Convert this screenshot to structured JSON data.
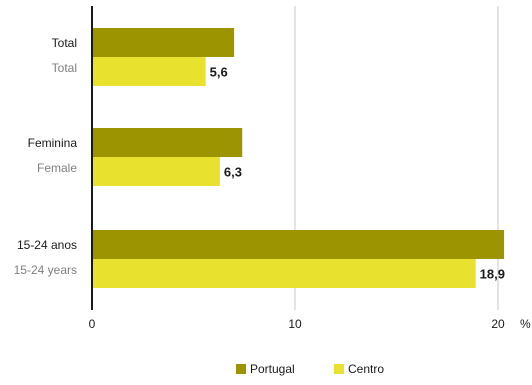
{
  "chart_data": {
    "type": "bar",
    "orientation": "horizontal",
    "categories": [
      {
        "label": "Total",
        "sublabel": "Total"
      },
      {
        "label": "Feminina",
        "sublabel": "Female"
      },
      {
        "label": "15-24 anos",
        "sublabel": "15-24 years"
      }
    ],
    "series": [
      {
        "name": "Portugal",
        "color": "#9c9400",
        "values": [
          7.0,
          7.4,
          20.3
        ],
        "data_labels": [
          null,
          null,
          null
        ]
      },
      {
        "name": "Centro",
        "color": "#e8e22e",
        "values": [
          5.6,
          6.3,
          18.9
        ],
        "data_labels": [
          "5,6",
          "6,3",
          "18,9"
        ]
      }
    ],
    "x_ticks": [
      {
        "value": 0,
        "label": "0"
      },
      {
        "value": 10,
        "label": "10"
      },
      {
        "value": 20,
        "label": "20"
      }
    ],
    "unit": "%",
    "xlim": [
      0,
      20.5
    ],
    "grid": true,
    "legend_placement": "bottom-center"
  }
}
